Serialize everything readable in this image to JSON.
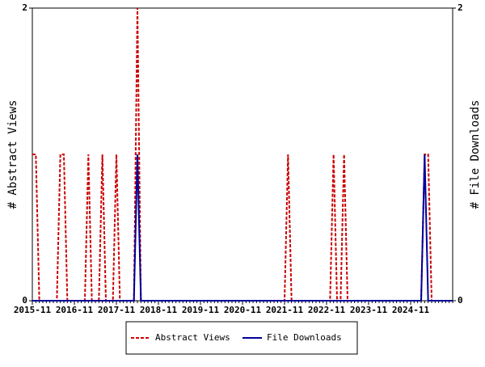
{
  "chart_data": {
    "type": "line",
    "categories": [
      "2015-11",
      null,
      null,
      null,
      null,
      null,
      null,
      null,
      null,
      null,
      null,
      null,
      "2016-11",
      null,
      null,
      null,
      null,
      null,
      null,
      null,
      null,
      null,
      null,
      null,
      "2017-11",
      null,
      null,
      null,
      null,
      null,
      null,
      null,
      null,
      null,
      null,
      null,
      "2018-11",
      null,
      null,
      null,
      null,
      null,
      null,
      null,
      null,
      null,
      null,
      null,
      "2019-11",
      null,
      null,
      null,
      null,
      null,
      null,
      null,
      null,
      null,
      null,
      null,
      "2020-11",
      null,
      null,
      null,
      null,
      null,
      null,
      null,
      null,
      null,
      null,
      null,
      "2021-11",
      null,
      null,
      null,
      null,
      null,
      null,
      null,
      null,
      null,
      null,
      null,
      "2022-11",
      null,
      null,
      null,
      null,
      null,
      null,
      null,
      null,
      null,
      null,
      null,
      "2023-11",
      null,
      null,
      null,
      null,
      null,
      null,
      null,
      null,
      null,
      null,
      null,
      "2024-11",
      null,
      null,
      null,
      null,
      null,
      null,
      null,
      null,
      null,
      null,
      null,
      null
    ],
    "series": [
      {
        "name": "Abstract Views",
        "color": "#cc0000",
        "dashed": true,
        "values": [
          1,
          1,
          0,
          0,
          0,
          0,
          0,
          0,
          1,
          1,
          0,
          0,
          0,
          0,
          0,
          0,
          1,
          0,
          0,
          0,
          1,
          0,
          0,
          0,
          1,
          0,
          0,
          0,
          0,
          0,
          2,
          0,
          0,
          0,
          0,
          0,
          0,
          0,
          0,
          0,
          0,
          0,
          0,
          0,
          0,
          0,
          0,
          0,
          0,
          0,
          0,
          0,
          0,
          0,
          0,
          0,
          0,
          0,
          0,
          0,
          0,
          0,
          0,
          0,
          0,
          0,
          0,
          0,
          0,
          0,
          0,
          0,
          0,
          1,
          0,
          0,
          0,
          0,
          0,
          0,
          0,
          0,
          0,
          0,
          0,
          0,
          1,
          0,
          0,
          1,
          0,
          0,
          0,
          0,
          0,
          0,
          0,
          0,
          0,
          0,
          0,
          0,
          0,
          0,
          0,
          0,
          0,
          0,
          0,
          0,
          0,
          0,
          1,
          1,
          0,
          0,
          0,
          0,
          0,
          0,
          0
        ]
      },
      {
        "name": "File Downloads",
        "color": "#000099",
        "dashed": false,
        "axis": "y2",
        "values": [
          0,
          0,
          0,
          0,
          0,
          0,
          0,
          0,
          0,
          0,
          0,
          0,
          0,
          0,
          0,
          0,
          0,
          0,
          0,
          0,
          0,
          0,
          0,
          0,
          0,
          0,
          0,
          0,
          0,
          0,
          1,
          0,
          0,
          0,
          0,
          0,
          0,
          0,
          0,
          0,
          0,
          0,
          0,
          0,
          0,
          0,
          0,
          0,
          0,
          0,
          0,
          0,
          0,
          0,
          0,
          0,
          0,
          0,
          0,
          0,
          0,
          0,
          0,
          0,
          0,
          0,
          0,
          0,
          0,
          0,
          0,
          0,
          0,
          0,
          0,
          0,
          0,
          0,
          0,
          0,
          0,
          0,
          0,
          0,
          0,
          0,
          0,
          0,
          0,
          0,
          0,
          0,
          0,
          0,
          0,
          0,
          0,
          0,
          0,
          0,
          0,
          0,
          0,
          0,
          0,
          0,
          0,
          0,
          0,
          0,
          0,
          0,
          1,
          0,
          0,
          0,
          0,
          0,
          0,
          0,
          0
        ]
      }
    ],
    "ylabel": "# Abstract Views",
    "y2label": "# File Downloads",
    "ylim": [
      0,
      2
    ],
    "yticks": [
      0,
      2
    ],
    "y2lim": [
      0,
      2
    ],
    "y2ticks": [
      0,
      2
    ]
  }
}
